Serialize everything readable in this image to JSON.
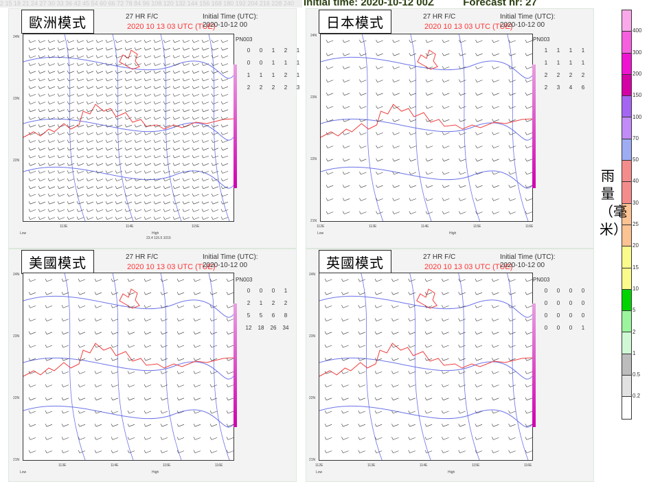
{
  "top_strip": "2  15  18  21  24  27  30  33  36  42  45  54  60  66  72  78  84  96  108 120 132 144 156 168 180 192 204 216 228 240",
  "header": {
    "initial_time": "Initial time: 2020-10-12 00Z",
    "forecast_hr": "Forecast hr: 27"
  },
  "common": {
    "fc": "27 HR F/C",
    "valid": "2020 10 13  03 UTC (TUE)",
    "init_label": "Initial Time (UTC):",
    "init_value": "2020-10-12  00",
    "pn": "PN003",
    "low": "Low",
    "high": "High"
  },
  "panels": [
    {
      "title": "歐洲模式",
      "table": [
        [
          "0",
          "0",
          "1",
          "2",
          "1"
        ],
        [
          "0",
          "0",
          "1",
          "1",
          "1"
        ],
        [
          "1",
          "1",
          "1",
          "2",
          "1"
        ],
        [
          "2",
          "2",
          "2",
          "2",
          "3"
        ]
      ],
      "lats": [
        "24N",
        "23N",
        "22N"
      ],
      "lons": [
        "113E",
        "114E",
        "115E"
      ],
      "high_info": "23.4  115.5  1015"
    },
    {
      "title": "日本模式",
      "table": [
        [
          "1",
          "1",
          "1",
          "1"
        ],
        [
          "1",
          "1",
          "1",
          "1"
        ],
        [
          "2",
          "2",
          "2",
          "2"
        ],
        [
          "2",
          "3",
          "4",
          "6"
        ]
      ],
      "lats": [
        "24N",
        "23N",
        "22N",
        "21N"
      ],
      "lons": [
        "112E",
        "113E",
        "114E",
        "115E",
        "116E"
      ]
    },
    {
      "title": "美國模式",
      "table": [
        [
          "0",
          "0",
          "0",
          "1"
        ],
        [
          "2",
          "1",
          "2",
          "2"
        ],
        [
          "5",
          "5",
          "6",
          "8"
        ],
        [
          "12",
          "18",
          "26",
          "34"
        ]
      ],
      "lats": [
        "24N",
        "23N",
        "22N",
        "21N"
      ],
      "lons": [
        "113E",
        "114E",
        "115E",
        "116E"
      ]
    },
    {
      "title": "英國模式",
      "table": [
        [
          "0",
          "0",
          "0",
          "0"
        ],
        [
          "0",
          "0",
          "0",
          "0"
        ],
        [
          "0",
          "0",
          "0",
          "0"
        ],
        [
          "0",
          "0",
          "0",
          "1"
        ]
      ],
      "lats": [
        "24N",
        "23N",
        "22N",
        "21N"
      ],
      "lons": [
        "112E",
        "113E",
        "114E",
        "115E",
        "116E"
      ]
    }
  ],
  "colorbar": {
    "unit": "雨量（毫米）",
    "labels": [
      "400",
      "300",
      "200",
      "150",
      "100",
      "70",
      "50",
      "40",
      "30",
      "25",
      "20",
      "15",
      "10",
      "5",
      "2",
      "1",
      "0.5",
      "0.2"
    ],
    "colors": [
      "#f9a8ea",
      "#f660df",
      "#f014d2",
      "#d400a6",
      "#a466f2",
      "#c28cf8",
      "#9eacf4",
      "#f58c8c",
      "#f58c8c",
      "#fbc292",
      "#fbc292",
      "#fbfb8c",
      "#fbfb8c",
      "#00d400",
      "#9cf59c",
      "#d0f8d4",
      "#bcbcbc",
      "#e2e2e2",
      "#ffffff"
    ]
  }
}
